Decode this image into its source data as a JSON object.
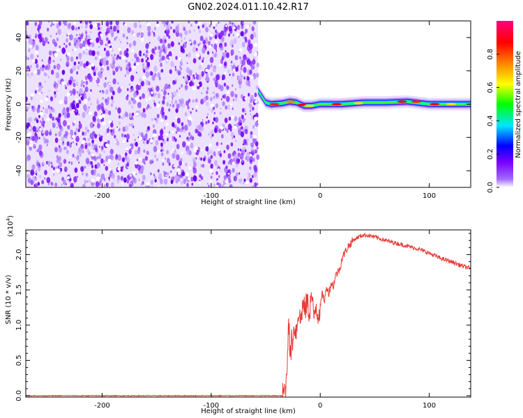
{
  "figure_title": "GN02.2024.011.10.42.R17",
  "chart_data": [
    {
      "type": "heatmap",
      "title": "GN02.2024.011.10.42.R17",
      "xlabel": "Height of straight line (km)",
      "ylabel": "Frequency (Hz)",
      "xlim": [
        -270,
        138
      ],
      "ylim": [
        -50,
        50
      ],
      "x_ticks": [
        -200,
        -100,
        0,
        100
      ],
      "x_tick_labels": [
        "-200",
        "-100",
        "0",
        "100"
      ],
      "y_ticks": [
        -40,
        -20,
        0,
        20,
        40
      ],
      "y_tick_labels": [
        "-40",
        "-20",
        "0",
        "20",
        "40"
      ],
      "noise_region": {
        "x_from": -270,
        "x_to": -57,
        "y_from": -50,
        "y_to": 50
      },
      "signal_band": {
        "description": "narrow high-amplitude band near 0 Hz",
        "points": [
          {
            "x": -57,
            "y": 8
          },
          {
            "x": -53,
            "y": 4
          },
          {
            "x": -50,
            "y": 1
          },
          {
            "x": -45,
            "y": 0
          },
          {
            "x": -35,
            "y": 0.5
          },
          {
            "x": -28,
            "y": 1.5
          },
          {
            "x": -22,
            "y": 1
          },
          {
            "x": -15,
            "y": -1
          },
          {
            "x": -8,
            "y": -1
          },
          {
            "x": 0,
            "y": 0
          },
          {
            "x": 20,
            "y": 0
          },
          {
            "x": 40,
            "y": 1
          },
          {
            "x": 60,
            "y": 1
          },
          {
            "x": 80,
            "y": 1.5
          },
          {
            "x": 100,
            "y": 0
          },
          {
            "x": 138,
            "y": 0
          }
        ]
      },
      "colorbar": {
        "label": "Normalized spectral amplitude",
        "range": [
          0,
          1
        ],
        "ticks": [
          0.0,
          0.2,
          0.4,
          0.6,
          0.8
        ],
        "tick_labels": [
          "0.0",
          "0.2",
          "0.4",
          "0.6",
          "0.8"
        ],
        "colors": [
          "#ffffff",
          "#7a00ff",
          "#0000ff",
          "#00e5ff",
          "#00ff00",
          "#ffff00",
          "#ff7f00",
          "#ff0000",
          "#ff0080"
        ]
      },
      "grid": false
    },
    {
      "type": "line",
      "xlabel": "Height of straight line (km)",
      "ylabel": "SNR (10 * v/v)",
      "y_multiplier_label": "(x10",
      "y_multiplier_exp": "4",
      "y_multiplier_close": ")",
      "xlim": [
        -270,
        138
      ],
      "ylim": [
        -0.02,
        2.35
      ],
      "x_ticks": [
        -200,
        -100,
        0,
        100
      ],
      "x_tick_labels": [
        "-200",
        "-100",
        "0",
        "100"
      ],
      "y_ticks": [
        0.0,
        0.5,
        1.0,
        1.5,
        2.0
      ],
      "y_tick_labels": [
        "0.0",
        "0.5",
        "1.0",
        "1.5",
        "2.0"
      ],
      "color": "#e83a32",
      "series": [
        {
          "x": [
            -270,
            -100,
            -35,
            -33,
            -31,
            -30,
            -29,
            -28,
            -27,
            -26,
            -25,
            -24,
            -22,
            -20,
            -18,
            -16,
            -14,
            -12,
            -10,
            -8,
            -6,
            -4,
            -2,
            0,
            2,
            4,
            6,
            8,
            10,
            12,
            14,
            16,
            18,
            20,
            25,
            30,
            35,
            40,
            45,
            50,
            60,
            70,
            80,
            90,
            100,
            110,
            120,
            130,
            138
          ],
          "values": [
            0.0,
            0.0,
            0.0,
            0.05,
            0.2,
            0.6,
            1.2,
            0.7,
            0.5,
            0.9,
            0.75,
            1.0,
            0.9,
            1.2,
            1.05,
            1.3,
            1.2,
            1.35,
            1.15,
            1.45,
            1.1,
            1.3,
            1.15,
            1.25,
            1.45,
            1.35,
            1.55,
            1.45,
            1.6,
            1.55,
            1.7,
            1.75,
            1.8,
            1.95,
            2.1,
            2.2,
            2.25,
            2.28,
            2.27,
            2.25,
            2.2,
            2.16,
            2.12,
            2.08,
            2.02,
            1.95,
            1.9,
            1.84,
            1.8
          ]
        }
      ],
      "grid": false
    }
  ]
}
